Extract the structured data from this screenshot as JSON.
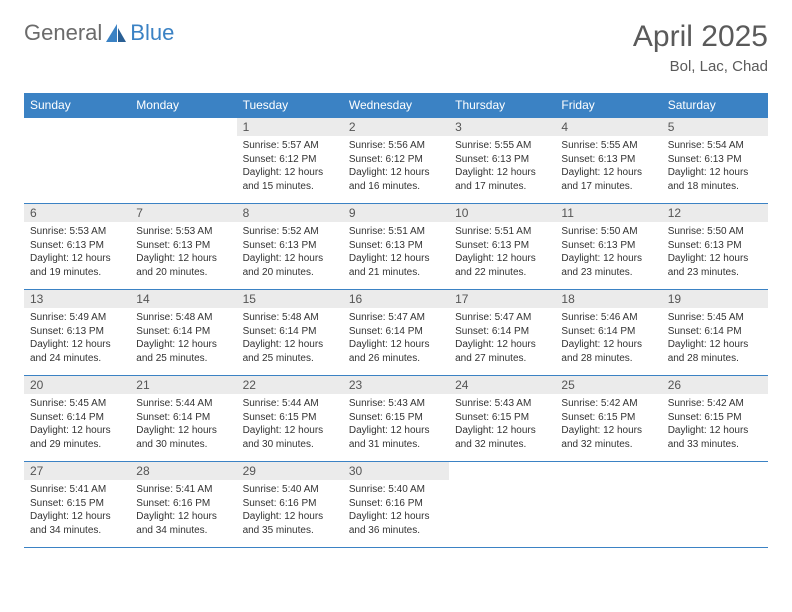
{
  "logo": {
    "general": "General",
    "blue": "Blue"
  },
  "header": {
    "title": "April 2025",
    "location": "Bol, Lac, Chad"
  },
  "colors": {
    "header_bg": "#3b82c4",
    "header_text": "#ffffff",
    "daynum_bg": "#ebebeb",
    "text": "#333333",
    "border": "#3b82c4"
  },
  "daysOfWeek": [
    "Sunday",
    "Monday",
    "Tuesday",
    "Wednesday",
    "Thursday",
    "Friday",
    "Saturday"
  ],
  "weeks": [
    [
      null,
      null,
      {
        "n": "1",
        "sr": "Sunrise: 5:57 AM",
        "ss": "Sunset: 6:12 PM",
        "dl": "Daylight: 12 hours and 15 minutes."
      },
      {
        "n": "2",
        "sr": "Sunrise: 5:56 AM",
        "ss": "Sunset: 6:12 PM",
        "dl": "Daylight: 12 hours and 16 minutes."
      },
      {
        "n": "3",
        "sr": "Sunrise: 5:55 AM",
        "ss": "Sunset: 6:13 PM",
        "dl": "Daylight: 12 hours and 17 minutes."
      },
      {
        "n": "4",
        "sr": "Sunrise: 5:55 AM",
        "ss": "Sunset: 6:13 PM",
        "dl": "Daylight: 12 hours and 17 minutes."
      },
      {
        "n": "5",
        "sr": "Sunrise: 5:54 AM",
        "ss": "Sunset: 6:13 PM",
        "dl": "Daylight: 12 hours and 18 minutes."
      }
    ],
    [
      {
        "n": "6",
        "sr": "Sunrise: 5:53 AM",
        "ss": "Sunset: 6:13 PM",
        "dl": "Daylight: 12 hours and 19 minutes."
      },
      {
        "n": "7",
        "sr": "Sunrise: 5:53 AM",
        "ss": "Sunset: 6:13 PM",
        "dl": "Daylight: 12 hours and 20 minutes."
      },
      {
        "n": "8",
        "sr": "Sunrise: 5:52 AM",
        "ss": "Sunset: 6:13 PM",
        "dl": "Daylight: 12 hours and 20 minutes."
      },
      {
        "n": "9",
        "sr": "Sunrise: 5:51 AM",
        "ss": "Sunset: 6:13 PM",
        "dl": "Daylight: 12 hours and 21 minutes."
      },
      {
        "n": "10",
        "sr": "Sunrise: 5:51 AM",
        "ss": "Sunset: 6:13 PM",
        "dl": "Daylight: 12 hours and 22 minutes."
      },
      {
        "n": "11",
        "sr": "Sunrise: 5:50 AM",
        "ss": "Sunset: 6:13 PM",
        "dl": "Daylight: 12 hours and 23 minutes."
      },
      {
        "n": "12",
        "sr": "Sunrise: 5:50 AM",
        "ss": "Sunset: 6:13 PM",
        "dl": "Daylight: 12 hours and 23 minutes."
      }
    ],
    [
      {
        "n": "13",
        "sr": "Sunrise: 5:49 AM",
        "ss": "Sunset: 6:13 PM",
        "dl": "Daylight: 12 hours and 24 minutes."
      },
      {
        "n": "14",
        "sr": "Sunrise: 5:48 AM",
        "ss": "Sunset: 6:14 PM",
        "dl": "Daylight: 12 hours and 25 minutes."
      },
      {
        "n": "15",
        "sr": "Sunrise: 5:48 AM",
        "ss": "Sunset: 6:14 PM",
        "dl": "Daylight: 12 hours and 25 minutes."
      },
      {
        "n": "16",
        "sr": "Sunrise: 5:47 AM",
        "ss": "Sunset: 6:14 PM",
        "dl": "Daylight: 12 hours and 26 minutes."
      },
      {
        "n": "17",
        "sr": "Sunrise: 5:47 AM",
        "ss": "Sunset: 6:14 PM",
        "dl": "Daylight: 12 hours and 27 minutes."
      },
      {
        "n": "18",
        "sr": "Sunrise: 5:46 AM",
        "ss": "Sunset: 6:14 PM",
        "dl": "Daylight: 12 hours and 28 minutes."
      },
      {
        "n": "19",
        "sr": "Sunrise: 5:45 AM",
        "ss": "Sunset: 6:14 PM",
        "dl": "Daylight: 12 hours and 28 minutes."
      }
    ],
    [
      {
        "n": "20",
        "sr": "Sunrise: 5:45 AM",
        "ss": "Sunset: 6:14 PM",
        "dl": "Daylight: 12 hours and 29 minutes."
      },
      {
        "n": "21",
        "sr": "Sunrise: 5:44 AM",
        "ss": "Sunset: 6:14 PM",
        "dl": "Daylight: 12 hours and 30 minutes."
      },
      {
        "n": "22",
        "sr": "Sunrise: 5:44 AM",
        "ss": "Sunset: 6:15 PM",
        "dl": "Daylight: 12 hours and 30 minutes."
      },
      {
        "n": "23",
        "sr": "Sunrise: 5:43 AM",
        "ss": "Sunset: 6:15 PM",
        "dl": "Daylight: 12 hours and 31 minutes."
      },
      {
        "n": "24",
        "sr": "Sunrise: 5:43 AM",
        "ss": "Sunset: 6:15 PM",
        "dl": "Daylight: 12 hours and 32 minutes."
      },
      {
        "n": "25",
        "sr": "Sunrise: 5:42 AM",
        "ss": "Sunset: 6:15 PM",
        "dl": "Daylight: 12 hours and 32 minutes."
      },
      {
        "n": "26",
        "sr": "Sunrise: 5:42 AM",
        "ss": "Sunset: 6:15 PM",
        "dl": "Daylight: 12 hours and 33 minutes."
      }
    ],
    [
      {
        "n": "27",
        "sr": "Sunrise: 5:41 AM",
        "ss": "Sunset: 6:15 PM",
        "dl": "Daylight: 12 hours and 34 minutes."
      },
      {
        "n": "28",
        "sr": "Sunrise: 5:41 AM",
        "ss": "Sunset: 6:16 PM",
        "dl": "Daylight: 12 hours and 34 minutes."
      },
      {
        "n": "29",
        "sr": "Sunrise: 5:40 AM",
        "ss": "Sunset: 6:16 PM",
        "dl": "Daylight: 12 hours and 35 minutes."
      },
      {
        "n": "30",
        "sr": "Sunrise: 5:40 AM",
        "ss": "Sunset: 6:16 PM",
        "dl": "Daylight: 12 hours and 36 minutes."
      },
      null,
      null,
      null
    ]
  ]
}
